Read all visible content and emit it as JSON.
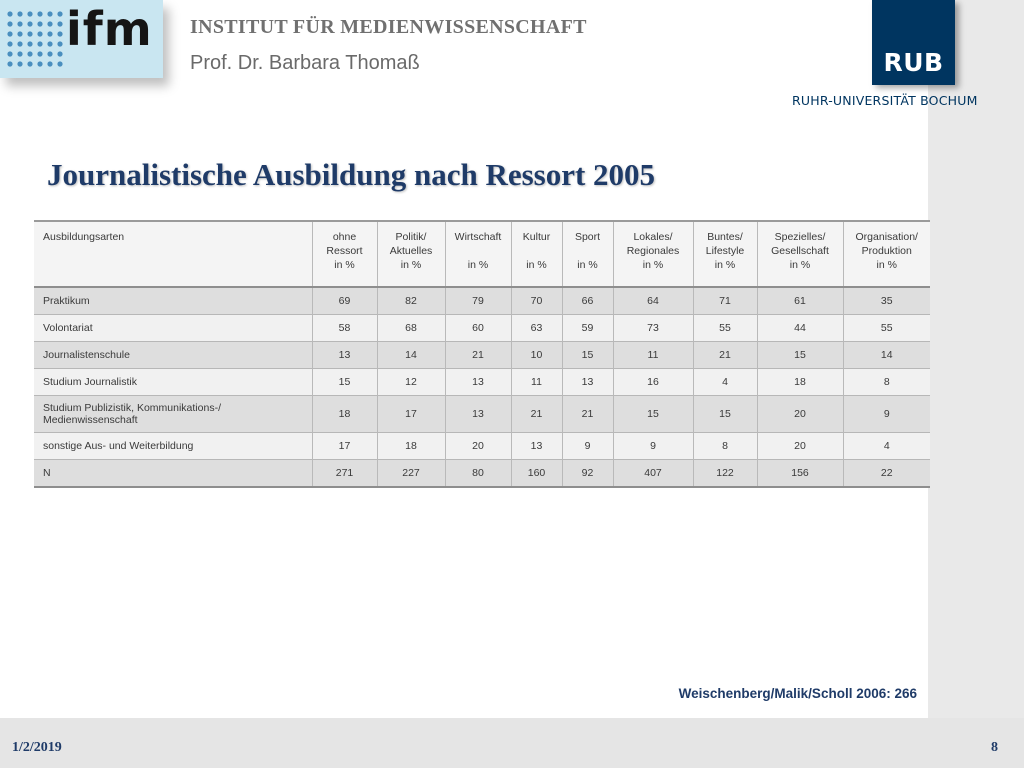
{
  "header": {
    "logo_text": "ifm",
    "institute": "INSTITUT FÜR MEDIENWISSENSCHAFT",
    "professor": "Prof. Dr. Barbara Thomaß",
    "rub_logo": "RUB",
    "rub_subtitle": "RUHR-UNIVERSITÄT BOCHUM"
  },
  "slide": {
    "title": "Journalistische Ausbildung nach Ressort 2005",
    "source": "Weischenberg/Malik/Scholl 2006: 266"
  },
  "table": {
    "header": {
      "label": "Ausbildungsarten",
      "columns": [
        [
          "ohne",
          "Ressort",
          "in %"
        ],
        [
          "Politik/",
          "Aktuelles",
          "in %"
        ],
        [
          "Wirtschaft",
          "",
          "in %"
        ],
        [
          "Kultur",
          "",
          "in %"
        ],
        [
          "Sport",
          "",
          "in %"
        ],
        [
          "Lokales/",
          "Regionales",
          "in %"
        ],
        [
          "Buntes/",
          "Lifestyle",
          "in %"
        ],
        [
          "Spezielles/",
          "Gesellschaft",
          "in %"
        ],
        [
          "Organisation/",
          "Produktion",
          "in %"
        ]
      ]
    },
    "rows": [
      {
        "label": [
          "Praktikum"
        ],
        "values": [
          "69",
          "82",
          "79",
          "70",
          "66",
          "64",
          "71",
          "61",
          "35"
        ]
      },
      {
        "label": [
          "Volontariat"
        ],
        "values": [
          "58",
          "68",
          "60",
          "63",
          "59",
          "73",
          "55",
          "44",
          "55"
        ]
      },
      {
        "label": [
          "Journalistenschule"
        ],
        "values": [
          "13",
          "14",
          "21",
          "10",
          "15",
          "11",
          "21",
          "15",
          "14"
        ]
      },
      {
        "label": [
          "Studium Journalistik"
        ],
        "values": [
          "15",
          "12",
          "13",
          "11",
          "13",
          "16",
          "4",
          "18",
          "8"
        ]
      },
      {
        "label": [
          "Studium Publizistik, Kommunikations-/",
          "Medienwissenschaft"
        ],
        "values": [
          "18",
          "17",
          "13",
          "21",
          "21",
          "15",
          "15",
          "20",
          "9"
        ]
      },
      {
        "label": [
          "sonstige Aus- und Weiterbildung"
        ],
        "values": [
          "17",
          "18",
          "20",
          "13",
          "9",
          "9",
          "8",
          "20",
          "4"
        ]
      },
      {
        "label": [
          "N"
        ],
        "values": [
          "271",
          "227",
          "80",
          "160",
          "92",
          "407",
          "122",
          "156",
          "22"
        ]
      }
    ]
  },
  "footer": {
    "date": "1/2/2019",
    "page": "8"
  },
  "colors": {
    "title_blue": "#1f3b68",
    "rub_blue": "#003560",
    "ifm_light_blue": "#c9e6f1"
  }
}
